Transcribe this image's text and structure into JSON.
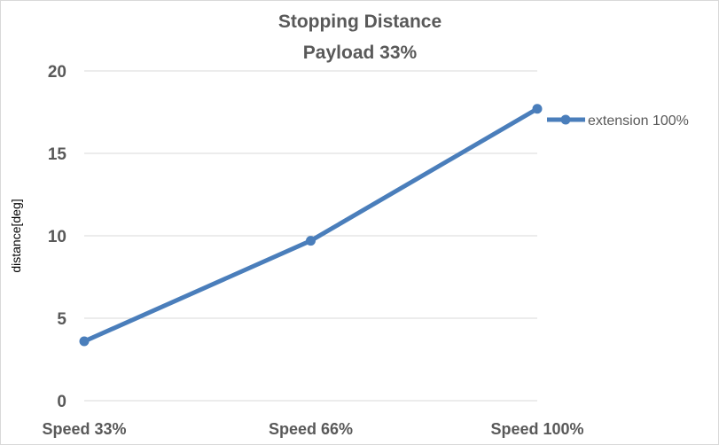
{
  "chart_data": {
    "type": "line",
    "title": "Stopping Distance",
    "subtitle": "Payload 33%",
    "xlabel": "",
    "ylabel": "distance[deg]",
    "categories": [
      "Speed 33%",
      "Speed 66%",
      "Speed 100%"
    ],
    "ylim": [
      0,
      20
    ],
    "yticks": [
      0,
      5,
      10,
      15,
      20
    ],
    "grid": true,
    "legend_position": "right",
    "series": [
      {
        "name": "extension 100%",
        "values": [
          3.6,
          9.7,
          17.7
        ],
        "color": "#4a7ebb"
      }
    ]
  }
}
